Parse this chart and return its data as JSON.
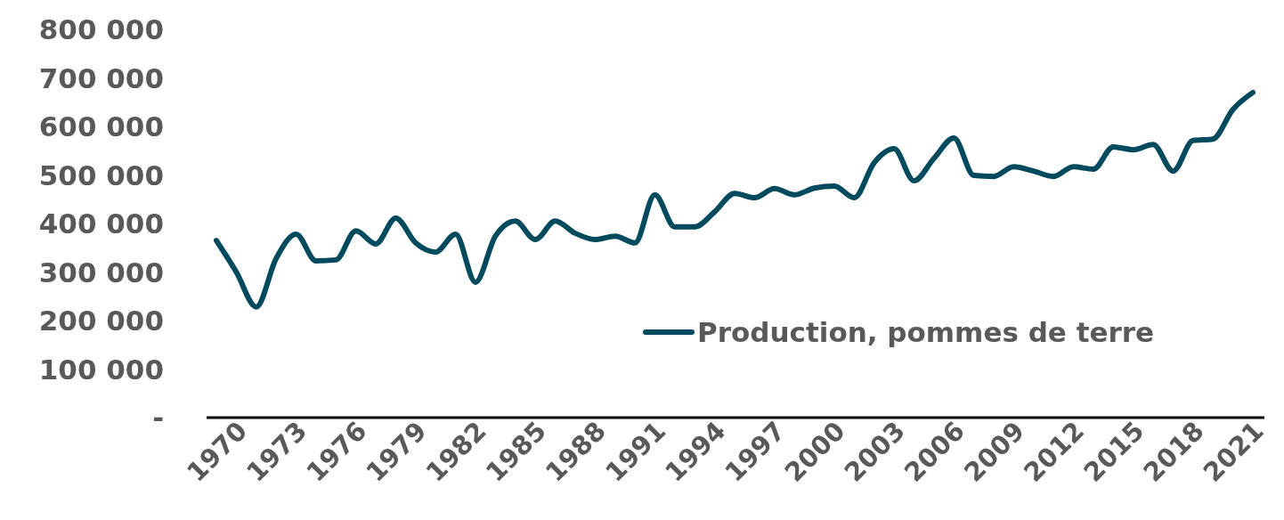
{
  "chart_data": {
    "type": "line",
    "categories": [
      "1970",
      null,
      null,
      "1973",
      null,
      null,
      "1976",
      null,
      null,
      "1979",
      null,
      null,
      "1982",
      null,
      null,
      "1985",
      null,
      null,
      "1988",
      null,
      null,
      "1991",
      null,
      null,
      "1994",
      null,
      null,
      "1997",
      null,
      null,
      "2000",
      null,
      null,
      "2003",
      null,
      null,
      "2006",
      null,
      null,
      "2009",
      null,
      null,
      "2012",
      null,
      null,
      "2015",
      null,
      null,
      "2018",
      null,
      null,
      "2021",
      null
    ],
    "series": [
      {
        "name": "Production, pommes de terre",
        "color": "#004a5e",
        "values": [
          365000,
          300000,
          228000,
          328000,
          378000,
          323000,
          325000,
          385000,
          358000,
          411000,
          360000,
          341000,
          378000,
          279000,
          374000,
          405000,
          367000,
          405000,
          380000,
          367000,
          374000,
          360000,
          459000,
          393000,
          393000,
          424000,
          462000,
          453000,
          472000,
          459000,
          473000,
          477000,
          453000,
          525000,
          554000,
          488000,
          534000,
          576000,
          499000,
          497000,
          517000,
          508000,
          497000,
          517000,
          512000,
          558000,
          552000,
          563000,
          508000,
          571000,
          574000,
          635000,
          670000
        ]
      }
    ],
    "ylim": [
      0,
      800000
    ],
    "yticks": [
      {
        "value": 0,
        "label": "-"
      },
      {
        "value": 100000,
        "label": "100 000"
      },
      {
        "value": 200000,
        "label": "200 000"
      },
      {
        "value": 300000,
        "label": "300 000"
      },
      {
        "value": 400000,
        "label": "400 000"
      },
      {
        "value": 500000,
        "label": "500 000"
      },
      {
        "value": 600000,
        "label": "600 000"
      },
      {
        "value": 700000,
        "label": "700 000"
      },
      {
        "value": 800000,
        "label": "800 000"
      }
    ],
    "grid": false,
    "legend": "right",
    "marker": "none",
    "line_style": "solid"
  }
}
